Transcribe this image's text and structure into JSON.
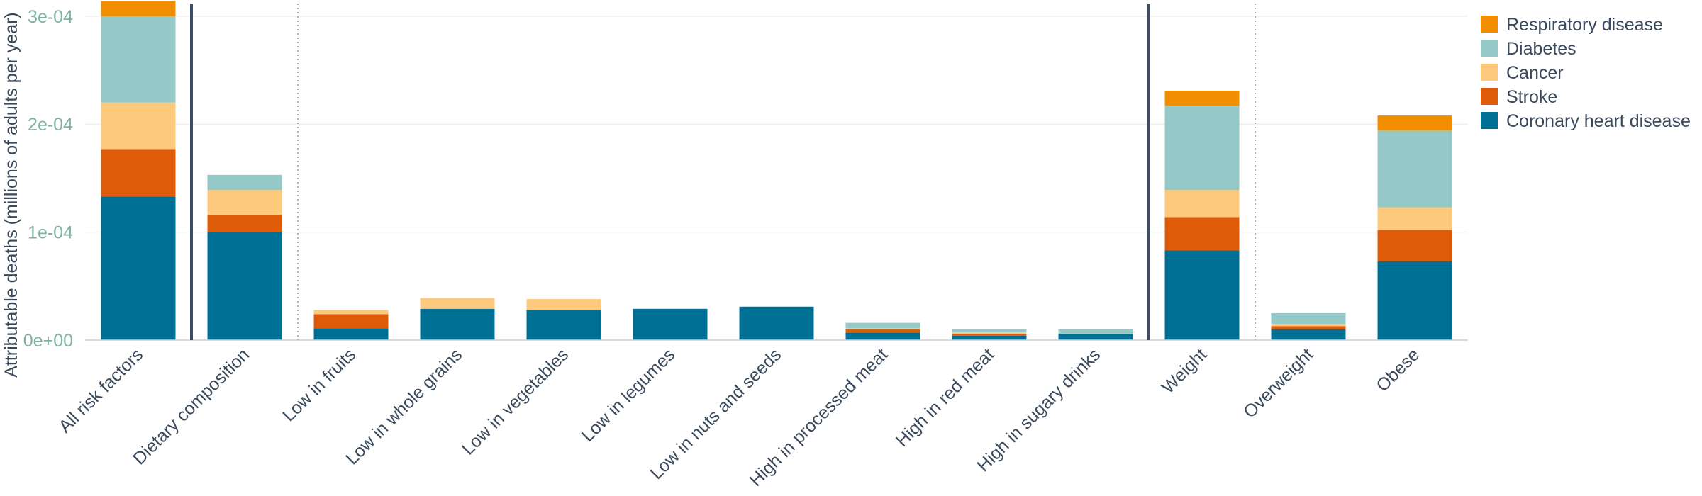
{
  "chart_data": {
    "type": "bar",
    "stacked": true,
    "categories": [
      "All risk factors",
      "Dietary composition",
      "Low in fruits",
      "Low in whole grains",
      "Low in vegetables",
      "Low in legumes",
      "Low in nuts and seeds",
      "High in processed meat",
      "High in red meat",
      "High in sugary drinks",
      "Weight",
      "Overweight",
      "Obese"
    ],
    "series": [
      {
        "name": "Coronary heart disease",
        "color": "#006f94",
        "values": [
          0.000133,
          0.0001,
          1.1e-05,
          2.9e-05,
          2.8e-05,
          2.9e-05,
          3.1e-05,
          7e-06,
          4e-06,
          6e-06,
          8.3e-05,
          1e-05,
          7.3e-05
        ]
      },
      {
        "name": "Stroke",
        "color": "#de5c09",
        "values": [
          4.4e-05,
          1.6e-05,
          1.3e-05,
          0.0,
          0.0,
          0.0,
          0.0,
          3e-06,
          2e-06,
          0.0,
          3.1e-05,
          3e-06,
          2.9e-05
        ]
      },
      {
        "name": "Cancer",
        "color": "#fcc97d",
        "values": [
          4.3e-05,
          2.3e-05,
          4e-06,
          1e-05,
          1e-05,
          0.0,
          0.0,
          1e-06,
          1e-06,
          0.0,
          2.5e-05,
          2e-06,
          2.1e-05
        ]
      },
      {
        "name": "Diabetes",
        "color": "#94c9c7",
        "values": [
          8e-05,
          1.4e-05,
          0.0,
          0.0,
          0.0,
          0.0,
          0.0,
          5e-06,
          3e-06,
          4e-06,
          7.8e-05,
          1e-05,
          7.1e-05
        ]
      },
      {
        "name": "Respiratory disease",
        "color": "#f28f00",
        "values": [
          1.4e-05,
          0.0,
          0.0,
          0.0,
          0.0,
          0.0,
          0.0,
          0.0,
          0.0,
          0.0,
          1.4e-05,
          0.0,
          1.4e-05
        ]
      }
    ],
    "ylabel": "Attributable deaths (millions of adults per year)",
    "ylim": [
      0,
      0.000315
    ],
    "yticks": [
      0,
      0.0001,
      0.0002,
      0.0003
    ],
    "ytick_labels": [
      "0e+00",
      "1e-04",
      "2e-04",
      "3e-04"
    ],
    "grid": true,
    "legend_position": "top-right",
    "legend_order": [
      "Respiratory disease",
      "Diabetes",
      "Cancer",
      "Stroke",
      "Coronary heart disease"
    ],
    "group_separators": [
      {
        "after_category": "All risk factors",
        "style": "solid"
      },
      {
        "after_category": "Dietary composition",
        "style": "dotted"
      },
      {
        "after_category": "High in sugary drinks",
        "style": "solid"
      },
      {
        "after_category": "Weight",
        "style": "dotted"
      }
    ]
  }
}
